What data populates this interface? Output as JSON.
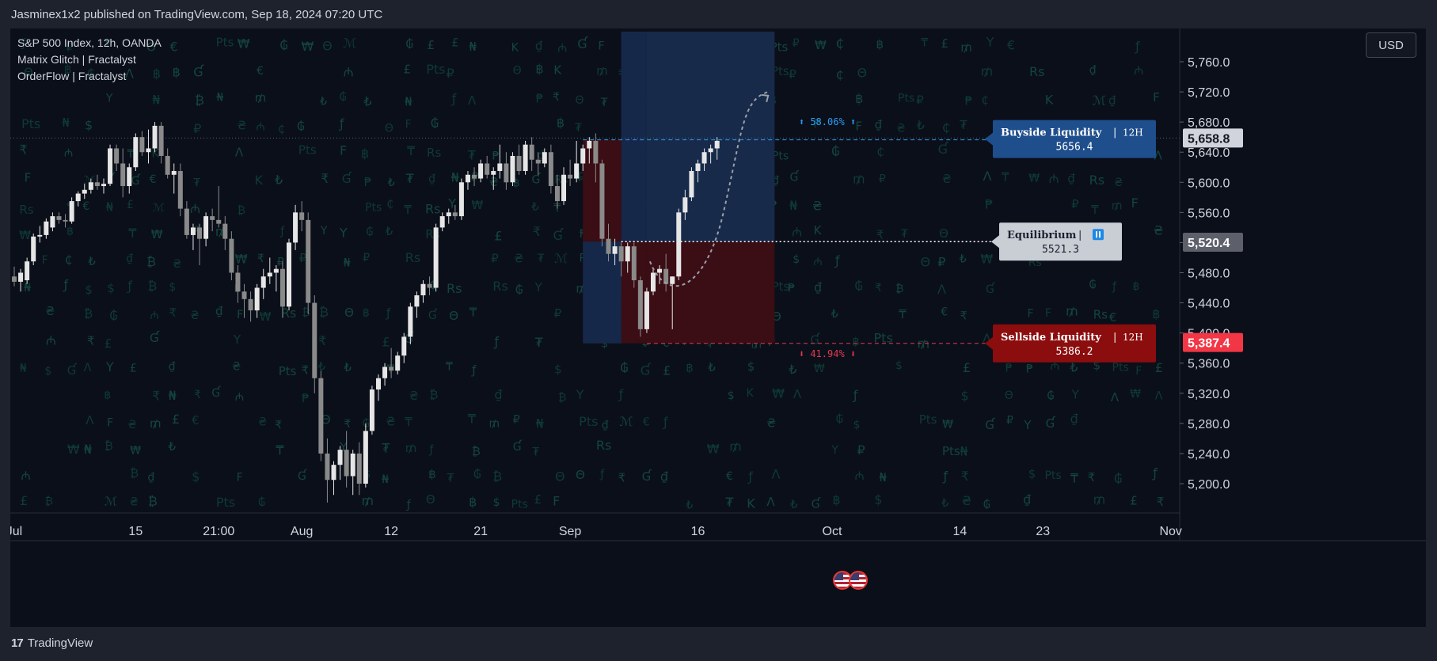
{
  "publisher": "Jasminex1x2 published on TradingView.com, Sep 18, 2024 07:20 UTC",
  "legend": {
    "symbol": "S&P 500 Index, 12h, OANDA",
    "indicator1": "Matrix Glitch | Fractalyst",
    "indicator2": "OrderFlow | Fractalyst"
  },
  "currency_button": "USD",
  "brand": "TradingView",
  "colors": {
    "background": "#0b0f1a",
    "up_candle": "#e6e6e6",
    "down_candle": "#8a8a8a",
    "buyside": "#1f4e8c",
    "sellside": "#8b0d0d",
    "equilibrium": "#c9cdd4",
    "matrix_glyph": "#0f3b33"
  },
  "chart_data": {
    "type": "candlestick",
    "y_axis": {
      "min": 5160,
      "max": 5810,
      "ticks": [
        "5,200.0",
        "5,240.0",
        "5,280.0",
        "5,320.0",
        "5,360.0",
        "5,400.0",
        "5,440.0",
        "5,480.0",
        "5,520.0",
        "5,560.0",
        "5,600.0",
        "5,640.0",
        "5,680.0",
        "5,720.0",
        "5,760.0"
      ],
      "tick_values": [
        5200,
        5240,
        5280,
        5320,
        5360,
        5400,
        5440,
        5480,
        5520,
        5560,
        5600,
        5640,
        5680,
        5720,
        5760
      ]
    },
    "x_axis": {
      "labels": [
        {
          "text": "Jul",
          "index": 0
        },
        {
          "text": "15",
          "index": 19
        },
        {
          "text": "21:00",
          "index": 32
        },
        {
          "text": "Aug",
          "index": 45
        },
        {
          "text": "12",
          "index": 59
        },
        {
          "text": "21",
          "index": 73
        },
        {
          "text": "Sep",
          "index": 87
        },
        {
          "text": "16",
          "index": 107
        },
        {
          "text": "Oct",
          "index": 128
        },
        {
          "text": "14",
          "index": 148
        },
        {
          "text": "23",
          "index": 161
        },
        {
          "text": "Nov",
          "index": 181
        }
      ]
    },
    "price_badges": [
      {
        "text": "5,658.8",
        "value": 5658.8,
        "bg": "#d1d4dc",
        "fg": "#131722"
      },
      {
        "text": "5,520.4",
        "value": 5520.4,
        "bg": "#5d606b",
        "fg": "#ffffff"
      },
      {
        "text": "5,387.4",
        "value": 5387.4,
        "bg": "#f23645",
        "fg": "#ffffff"
      }
    ],
    "candles": [
      [
        5475,
        5488,
        5462,
        5468
      ],
      [
        5468,
        5485,
        5455,
        5480
      ],
      [
        5470,
        5500,
        5465,
        5495
      ],
      [
        5495,
        5532,
        5490,
        5528
      ],
      [
        5528,
        5542,
        5520,
        5530
      ],
      [
        5530,
        5552,
        5525,
        5548
      ],
      [
        5540,
        5560,
        5535,
        5555
      ],
      [
        5555,
        5560,
        5545,
        5550
      ],
      [
        5550,
        5558,
        5540,
        5548
      ],
      [
        5548,
        5580,
        5545,
        5575
      ],
      [
        5575,
        5588,
        5568,
        5585
      ],
      [
        5585,
        5598,
        5578,
        5590
      ],
      [
        5590,
        5605,
        5585,
        5600
      ],
      [
        5600,
        5610,
        5590,
        5595
      ],
      [
        5595,
        5605,
        5585,
        5598
      ],
      [
        5598,
        5650,
        5595,
        5645
      ],
      [
        5645,
        5650,
        5615,
        5625
      ],
      [
        5625,
        5645,
        5580,
        5595
      ],
      [
        5595,
        5625,
        5585,
        5620
      ],
      [
        5620,
        5665,
        5615,
        5660
      ],
      [
        5660,
        5668,
        5635,
        5640
      ],
      [
        5640,
        5670,
        5625,
        5645
      ],
      [
        5645,
        5680,
        5640,
        5675
      ],
      [
        5675,
        5680,
        5625,
        5635
      ],
      [
        5635,
        5645,
        5605,
        5610
      ],
      [
        5610,
        5625,
        5585,
        5615
      ],
      [
        5615,
        5625,
        5555,
        5565
      ],
      [
        5565,
        5575,
        5525,
        5530
      ],
      [
        5530,
        5545,
        5510,
        5540
      ],
      [
        5540,
        5545,
        5490,
        5525
      ],
      [
        5525,
        5560,
        5515,
        5555
      ],
      [
        5555,
        5565,
        5535,
        5550
      ],
      [
        5550,
        5595,
        5540,
        5545
      ],
      [
        5545,
        5555,
        5510,
        5525
      ],
      [
        5525,
        5535,
        5470,
        5480
      ],
      [
        5480,
        5490,
        5440,
        5455
      ],
      [
        5455,
        5465,
        5420,
        5445
      ],
      [
        5445,
        5455,
        5415,
        5430
      ],
      [
        5430,
        5465,
        5420,
        5460
      ],
      [
        5460,
        5485,
        5445,
        5475
      ],
      [
        5475,
        5500,
        5465,
        5480
      ],
      [
        5480,
        5490,
        5455,
        5485
      ],
      [
        5485,
        5495,
        5420,
        5435
      ],
      [
        5435,
        5525,
        5430,
        5520
      ],
      [
        5520,
        5570,
        5510,
        5560
      ],
      [
        5560,
        5575,
        5535,
        5550
      ],
      [
        5550,
        5560,
        5425,
        5440
      ],
      [
        5440,
        5450,
        5320,
        5340
      ],
      [
        5340,
        5350,
        5230,
        5240
      ],
      [
        5240,
        5260,
        5175,
        5205
      ],
      [
        5205,
        5230,
        5185,
        5225
      ],
      [
        5225,
        5250,
        5205,
        5245
      ],
      [
        5245,
        5270,
        5195,
        5210
      ],
      [
        5210,
        5245,
        5185,
        5240
      ],
      [
        5240,
        5255,
        5185,
        5200
      ],
      [
        5200,
        5280,
        5195,
        5270
      ],
      [
        5270,
        5330,
        5265,
        5325
      ],
      [
        5325,
        5345,
        5310,
        5340
      ],
      [
        5340,
        5360,
        5330,
        5355
      ],
      [
        5355,
        5380,
        5340,
        5350
      ],
      [
        5350,
        5375,
        5345,
        5370
      ],
      [
        5370,
        5400,
        5360,
        5395
      ],
      [
        5395,
        5440,
        5385,
        5435
      ],
      [
        5435,
        5455,
        5420,
        5450
      ],
      [
        5450,
        5470,
        5440,
        5465
      ],
      [
        5465,
        5475,
        5450,
        5460
      ],
      [
        5460,
        5545,
        5455,
        5540
      ],
      [
        5540,
        5560,
        5535,
        5555
      ],
      [
        5555,
        5565,
        5545,
        5560
      ],
      [
        5560,
        5570,
        5550,
        5555
      ],
      [
        5555,
        5605,
        5550,
        5600
      ],
      [
        5600,
        5615,
        5590,
        5610
      ],
      [
        5610,
        5620,
        5595,
        5605
      ],
      [
        5605,
        5630,
        5600,
        5625
      ],
      [
        5625,
        5635,
        5605,
        5610
      ],
      [
        5610,
        5620,
        5590,
        5615
      ],
      [
        5615,
        5650,
        5605,
        5625
      ],
      [
        5625,
        5640,
        5590,
        5600
      ],
      [
        5600,
        5640,
        5595,
        5635
      ],
      [
        5635,
        5650,
        5610,
        5615
      ],
      [
        5615,
        5655,
        5610,
        5650
      ],
      [
        5650,
        5660,
        5615,
        5630
      ],
      [
        5630,
        5640,
        5610,
        5625
      ],
      [
        5625,
        5645,
        5620,
        5640
      ],
      [
        5640,
        5650,
        5585,
        5595
      ],
      [
        5595,
        5610,
        5565,
        5575
      ],
      [
        5575,
        5620,
        5570,
        5610
      ],
      [
        5610,
        5630,
        5595,
        5605
      ],
      [
        5605,
        5655,
        5600,
        5625
      ],
      [
        5625,
        5650,
        5615,
        5645
      ],
      [
        5645,
        5660,
        5625,
        5655
      ],
      [
        5655,
        5665,
        5600,
        5625
      ],
      [
        5625,
        5630,
        5515,
        5525
      ],
      [
        5525,
        5545,
        5495,
        5505
      ],
      [
        5505,
        5525,
        5490,
        5515
      ],
      [
        5515,
        5520,
        5475,
        5495
      ],
      [
        5495,
        5520,
        5480,
        5515
      ],
      [
        5515,
        5520,
        5460,
        5470
      ],
      [
        5470,
        5475,
        5395,
        5405
      ],
      [
        5405,
        5460,
        5400,
        5455
      ],
      [
        5455,
        5485,
        5450,
        5480
      ],
      [
        5480,
        5490,
        5465,
        5485
      ],
      [
        5485,
        5505,
        5455,
        5465
      ],
      [
        5465,
        5475,
        5405,
        5475
      ],
      [
        5475,
        5565,
        5470,
        5560
      ],
      [
        5560,
        5590,
        5550,
        5580
      ],
      [
        5580,
        5620,
        5575,
        5615
      ],
      [
        5615,
        5630,
        5600,
        5625
      ],
      [
        5625,
        5645,
        5615,
        5640
      ],
      [
        5640,
        5650,
        5625,
        5645
      ],
      [
        5645,
        5660,
        5630,
        5655
      ]
    ],
    "zones": {
      "premium_discount_box": {
        "start_index": 95,
        "end_index": 119,
        "top": 5800,
        "bottom": 5386.2
      },
      "left_red": {
        "start_index": 89,
        "end_index": 95,
        "top": 5656.4,
        "bottom": 5521.3
      },
      "left_blue": {
        "start_index": 89,
        "end_index": 95,
        "top": 5521.3,
        "bottom": 5386.2
      },
      "right_blue": {
        "start_index": 99,
        "end_index": 119,
        "top": 5800,
        "bottom": 5521.3
      },
      "right_red": {
        "start_index": 99,
        "end_index": 119,
        "top": 5521.3,
        "bottom": 5386.2
      }
    },
    "levels": [
      {
        "name": "Buyside Liquidity",
        "value": 5656.4,
        "timeframe": "12H",
        "label_text": "5656.4"
      },
      {
        "name": "Equilibrium",
        "value": 5521.3,
        "label_text": "5521.3"
      },
      {
        "name": "Sellside Liquidity",
        "value": 5386.2,
        "timeframe": "12H",
        "label_text": "5386.2"
      }
    ],
    "annotations": {
      "up_pct": "⬆ 58.06% ⬆",
      "down_pct": "⬇ 41.94% ⬇",
      "buyside_label": "Buyside Liquidity",
      "sellside_label": "Sellside Liquidity",
      "equilibrium_label": "Equilibrium",
      "timeframe": "12H",
      "separator": "|"
    },
    "current_price_line": 5658.8
  },
  "matrix_glyphs": [
    "₿",
    "₽",
    "₩",
    "₹",
    "$",
    "₺",
    "€",
    "£",
    "฿",
    "₫",
    "₸",
    "₦",
    "₴",
    "₼",
    "ƒ",
    "Rs",
    "Pts",
    "Y",
    "K",
    "F",
    "Ɠ",
    "Λ",
    "Θ",
    "₮",
    "₱",
    "₲",
    "₵",
    "ℳ",
    "₥"
  ]
}
